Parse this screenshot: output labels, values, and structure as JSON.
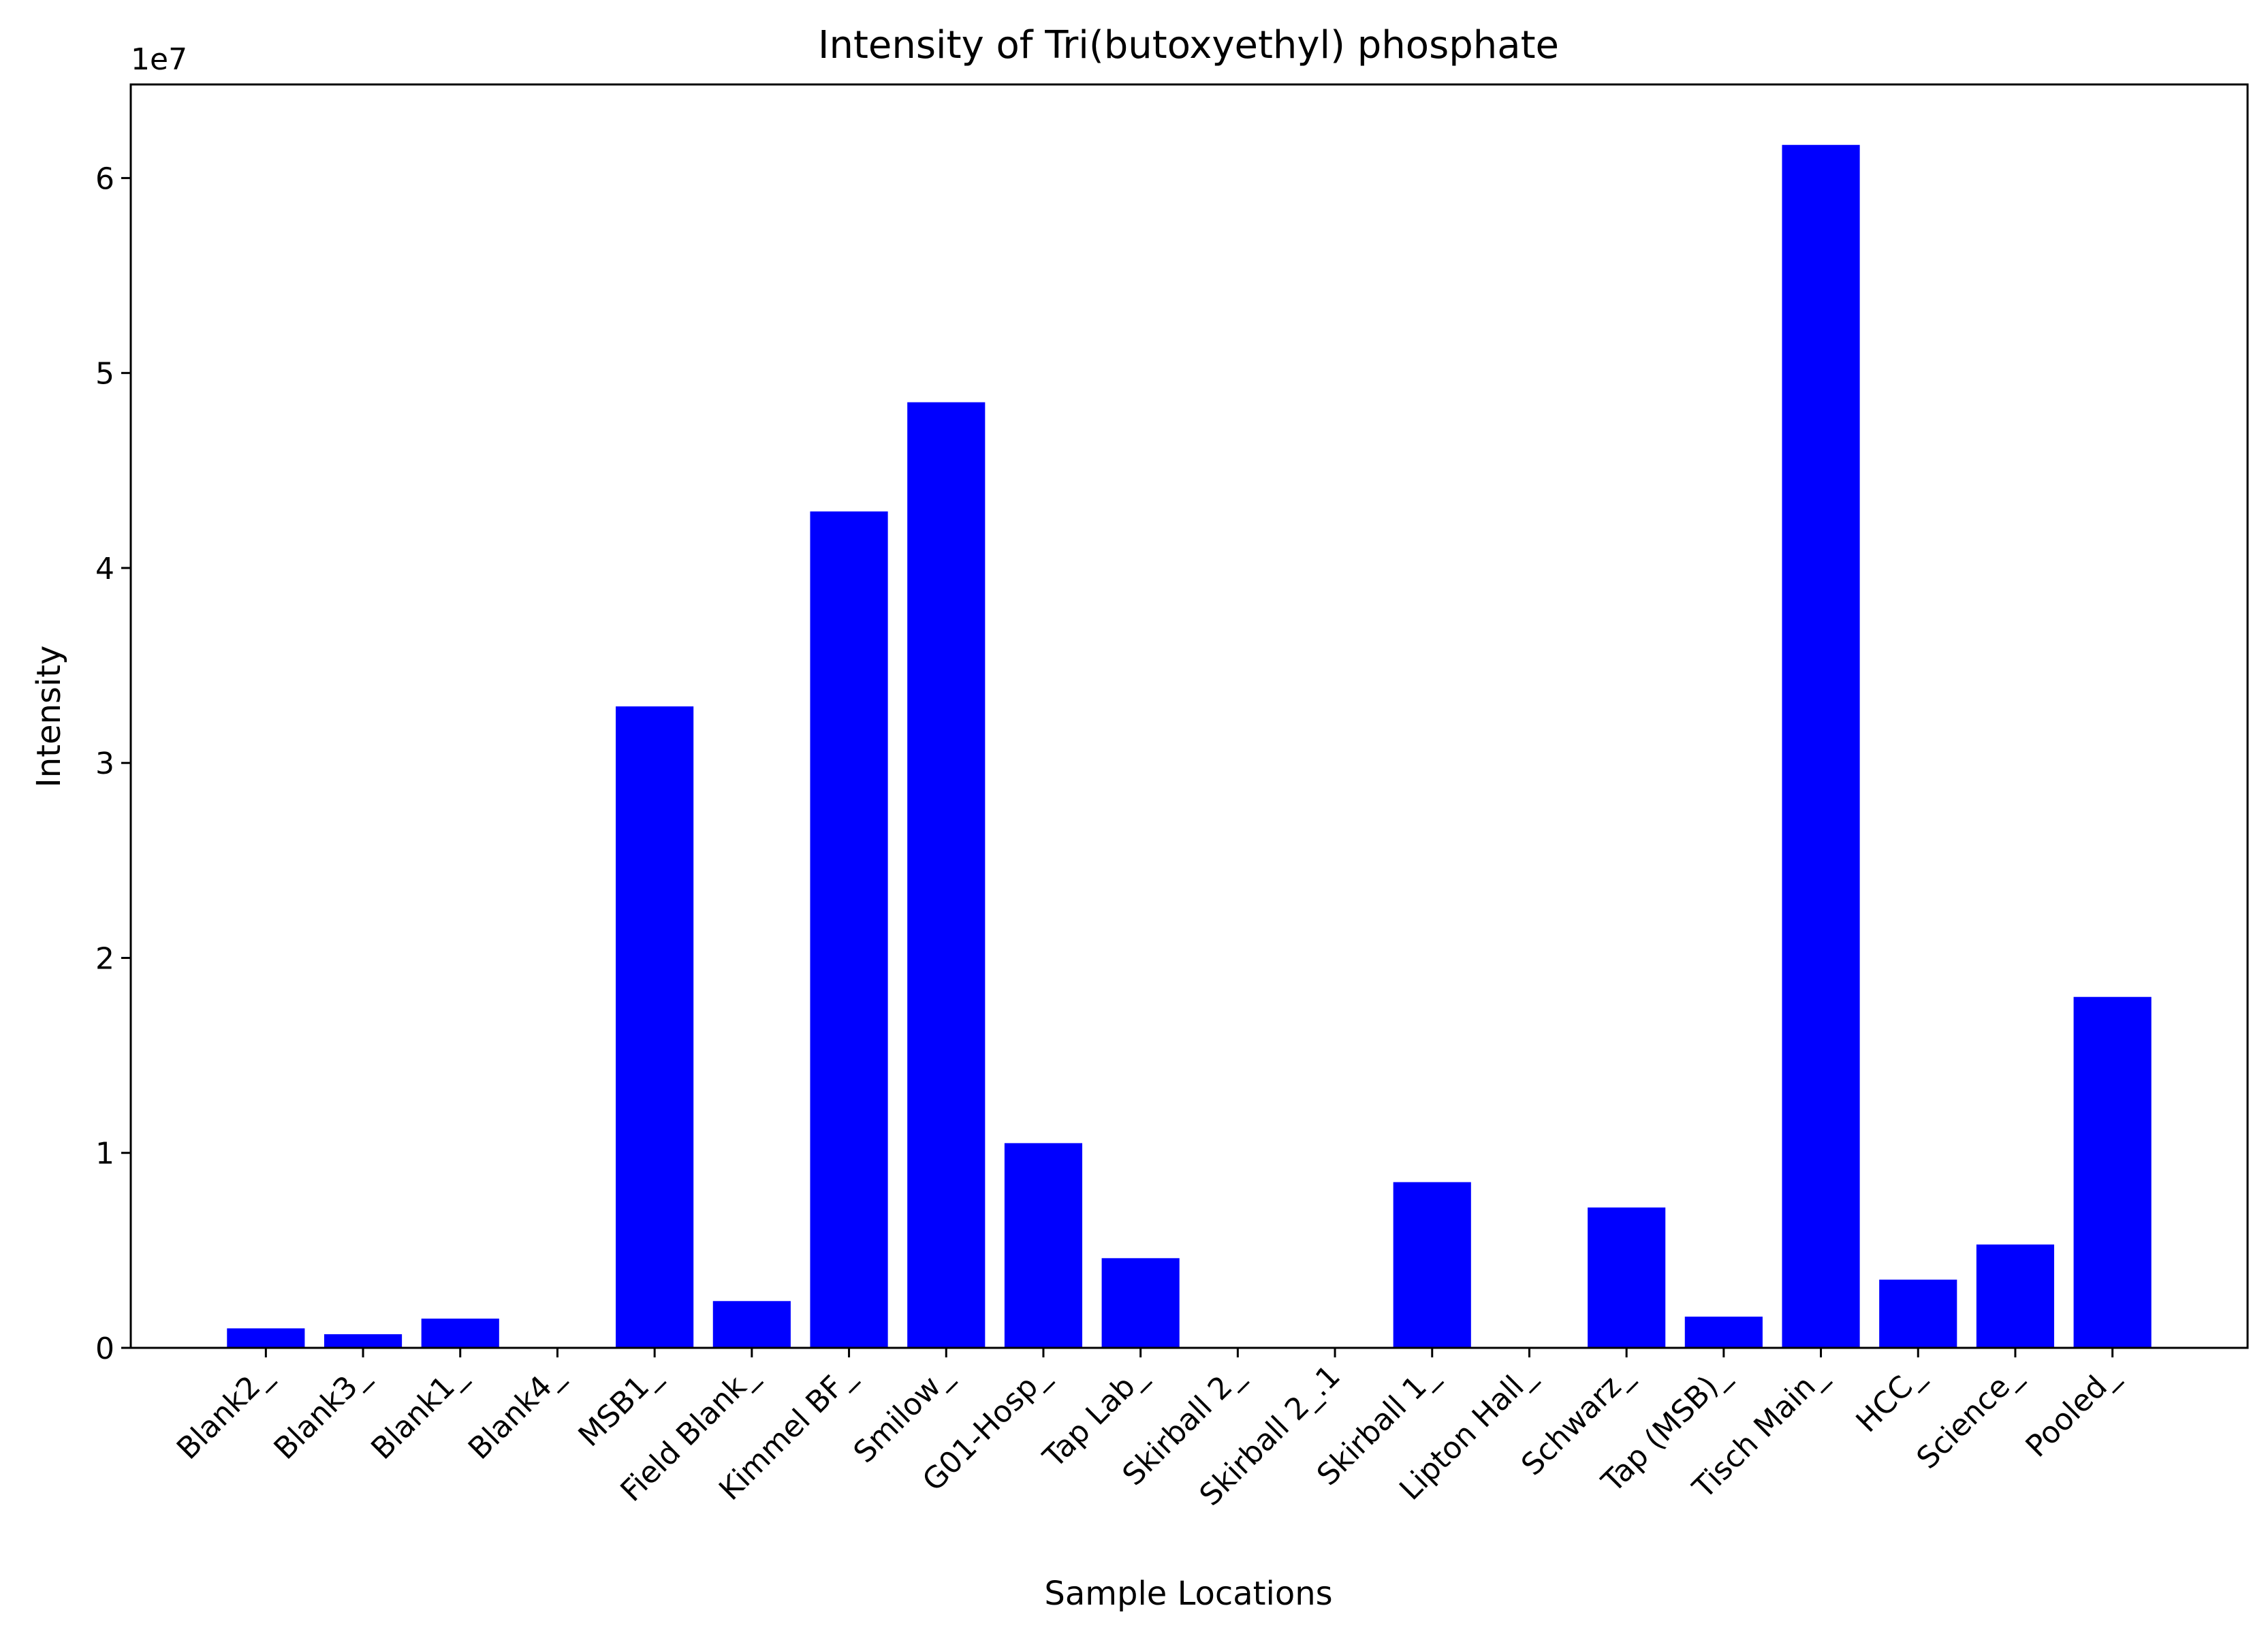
{
  "chart_data": {
    "type": "bar",
    "title": "Intensity of Tri(butoxyethyl) phosphate",
    "xlabel": "Sample Locations",
    "ylabel": "Intensity",
    "y_offset_label": "1e7",
    "y_scale": 10000000,
    "ylim": [
      0,
      64800000
    ],
    "yticks": [
      0,
      10000000,
      20000000,
      30000000,
      40000000,
      50000000,
      60000000
    ],
    "ytick_labels": [
      "0",
      "1",
      "2",
      "3",
      "4",
      "5",
      "6"
    ],
    "grid": false,
    "bar_color": "#0000ff",
    "categories": [
      "Blank2_",
      "Blank3_",
      "Blank1_",
      "Blank4_",
      "MSB1_",
      "Field Blank_",
      "Kimmel BF_",
      "Smilow_",
      "G01-Hosp_",
      "Tap Lab_",
      "Skirball 2_",
      "Skirball 2_.1",
      "Skirball 1_",
      "Lipton Hall_",
      "Schwarz_",
      "Tap (MSB)_",
      "Tisch Main_",
      "HCC_",
      "Science_",
      "Pooled_"
    ],
    "values": [
      1000000,
      700000,
      1500000,
      0,
      32900000,
      2400000,
      42900000,
      48500000,
      10500000,
      4600000,
      0,
      0,
      8500000,
      0,
      7200000,
      1600000,
      61700000,
      3500000,
      5300000,
      18000000
    ]
  }
}
